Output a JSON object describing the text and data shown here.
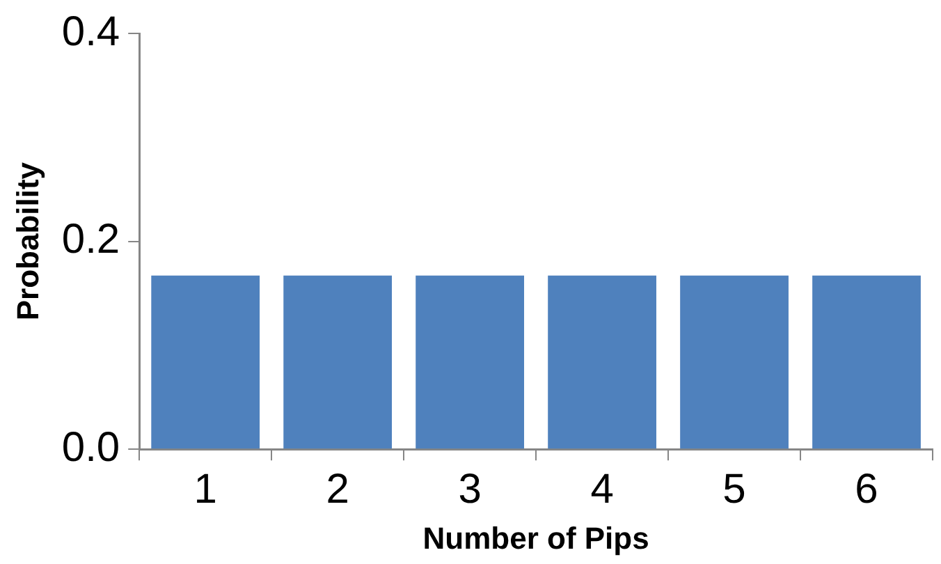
{
  "chart_data": {
    "type": "bar",
    "xlabel": "Number of Pips",
    "ylabel": "Probability",
    "categories": [
      "1",
      "2",
      "3",
      "4",
      "5",
      "6"
    ],
    "values": [
      0.167,
      0.167,
      0.167,
      0.167,
      0.167,
      0.167
    ],
    "color": "#4f81bd",
    "ylim": [
      0,
      0.4
    ],
    "yticks": [
      {
        "value": 0,
        "label": "0.0"
      },
      {
        "value": 0.2,
        "label": "0.2"
      },
      {
        "value": 0.4,
        "label": "0.4"
      }
    ],
    "grid": false,
    "legend": false
  }
}
